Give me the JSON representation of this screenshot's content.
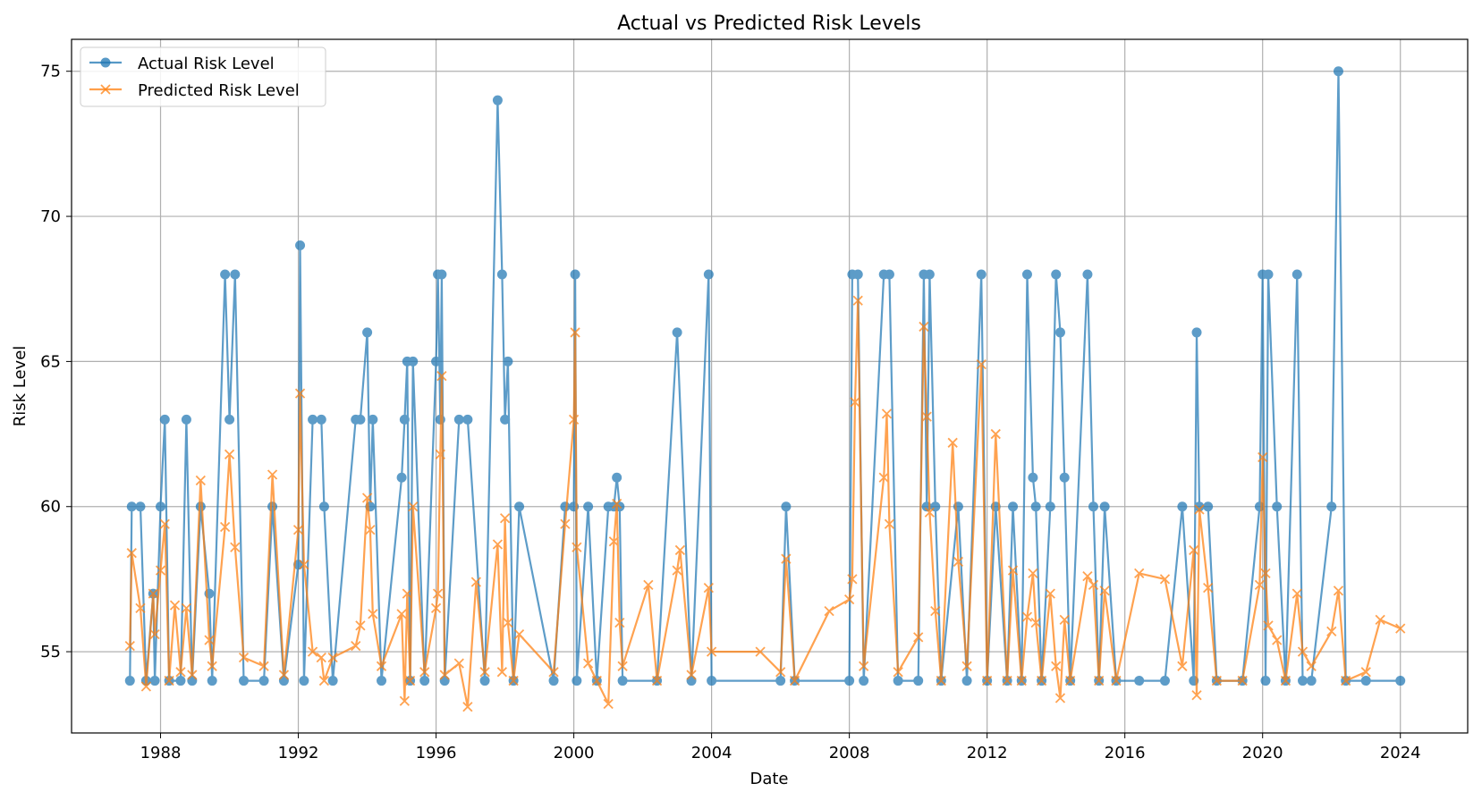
{
  "chart_data": {
    "type": "line",
    "title": "Actual vs Predicted Risk Levels",
    "xlabel": "Date",
    "ylabel": "Risk Level",
    "xlim": [
      "1985-06-01",
      "2025-12-15"
    ],
    "ylim": [
      52.2,
      76.1
    ],
    "x_ticks": [
      "1988",
      "1992",
      "1996",
      "2000",
      "2004",
      "2008",
      "2012",
      "2016",
      "2020",
      "2024"
    ],
    "y_ticks": [
      55,
      60,
      65,
      70,
      75
    ],
    "grid": true,
    "legend_position": "upper-left",
    "colors": {
      "actual": "#1f77b4",
      "predicted": "#ff7f0e"
    },
    "series": [
      {
        "name": "Actual Risk Level",
        "marker": "circle",
        "points": [
          [
            "1987-02-10",
            54
          ],
          [
            "1987-03-01",
            60
          ],
          [
            "1987-06-01",
            60
          ],
          [
            "1987-08-01",
            54
          ],
          [
            "1987-10-15",
            57
          ],
          [
            "1987-11-01",
            54
          ],
          [
            "1988-01-01",
            60
          ],
          [
            "1988-02-15",
            63
          ],
          [
            "1988-04-01",
            54
          ],
          [
            "1988-08-01",
            54
          ],
          [
            "1988-10-01",
            63
          ],
          [
            "1988-12-01",
            54
          ],
          [
            "1989-03-01",
            60
          ],
          [
            "1989-06-01",
            57
          ],
          [
            "1989-07-01",
            54
          ],
          [
            "1989-11-15",
            68
          ],
          [
            "1990-01-01",
            63
          ],
          [
            "1990-03-01",
            68
          ],
          [
            "1990-06-01",
            54
          ],
          [
            "1991-01-01",
            54
          ],
          [
            "1991-04-01",
            60
          ],
          [
            "1991-08-01",
            54
          ],
          [
            "1992-01-01",
            58
          ],
          [
            "1992-01-20",
            69
          ],
          [
            "1992-03-01",
            54
          ],
          [
            "1992-06-01",
            63
          ],
          [
            "1992-09-01",
            63
          ],
          [
            "1992-10-01",
            60
          ],
          [
            "1993-01-01",
            54
          ],
          [
            "1993-09-01",
            63
          ],
          [
            "1993-10-20",
            63
          ],
          [
            "1994-01-01",
            66
          ],
          [
            "1994-02-01",
            60
          ],
          [
            "1994-03-01",
            63
          ],
          [
            "1994-06-01",
            54
          ],
          [
            "1995-01-01",
            61
          ],
          [
            "1995-02-01",
            63
          ],
          [
            "1995-03-01",
            65
          ],
          [
            "1995-04-01",
            54
          ],
          [
            "1995-05-01",
            65
          ],
          [
            "1995-09-01",
            54
          ],
          [
            "1996-01-01",
            65
          ],
          [
            "1996-01-20",
            68
          ],
          [
            "1996-02-15",
            63
          ],
          [
            "1996-03-01",
            68
          ],
          [
            "1996-04-01",
            54
          ],
          [
            "1996-09-01",
            63
          ],
          [
            "1996-12-01",
            63
          ],
          [
            "1997-06-01",
            54
          ],
          [
            "1997-10-15",
            74
          ],
          [
            "1997-12-01",
            68
          ],
          [
            "1998-01-01",
            63
          ],
          [
            "1998-02-01",
            65
          ],
          [
            "1998-04-01",
            54
          ],
          [
            "1998-06-01",
            60
          ],
          [
            "1999-06-01",
            54
          ],
          [
            "1999-10-01",
            60
          ],
          [
            "2000-01-01",
            60
          ],
          [
            "2000-01-15",
            68
          ],
          [
            "2000-02-01",
            54
          ],
          [
            "2000-06-01",
            60
          ],
          [
            "2000-09-01",
            54
          ],
          [
            "2001-01-01",
            60
          ],
          [
            "2001-03-01",
            60
          ],
          [
            "2001-04-01",
            61
          ],
          [
            "2001-05-01",
            60
          ],
          [
            "2001-06-01",
            54
          ],
          [
            "2002-06-01",
            54
          ],
          [
            "2003-01-01",
            66
          ],
          [
            "2003-06-01",
            54
          ],
          [
            "2003-12-01",
            68
          ],
          [
            "2004-01-01",
            54
          ],
          [
            "2006-01-01",
            54
          ],
          [
            "2006-03-01",
            60
          ],
          [
            "2006-06-01",
            54
          ],
          [
            "2008-01-01",
            54
          ],
          [
            "2008-02-01",
            68
          ],
          [
            "2008-04-01",
            68
          ],
          [
            "2008-06-01",
            54
          ],
          [
            "2009-01-01",
            68
          ],
          [
            "2009-03-01",
            68
          ],
          [
            "2009-06-01",
            54
          ],
          [
            "2010-01-01",
            54
          ],
          [
            "2010-03-01",
            68
          ],
          [
            "2010-04-01",
            60
          ],
          [
            "2010-05-01",
            68
          ],
          [
            "2010-07-01",
            60
          ],
          [
            "2010-09-01",
            54
          ],
          [
            "2011-03-01",
            60
          ],
          [
            "2011-06-01",
            54
          ],
          [
            "2011-11-01",
            68
          ],
          [
            "2012-01-01",
            54
          ],
          [
            "2012-04-01",
            60
          ],
          [
            "2012-08-01",
            54
          ],
          [
            "2012-10-01",
            60
          ],
          [
            "2013-01-01",
            54
          ],
          [
            "2013-03-01",
            68
          ],
          [
            "2013-05-01",
            61
          ],
          [
            "2013-06-01",
            60
          ],
          [
            "2013-08-01",
            54
          ],
          [
            "2013-11-01",
            60
          ],
          [
            "2014-01-01",
            68
          ],
          [
            "2014-02-15",
            66
          ],
          [
            "2014-04-01",
            61
          ],
          [
            "2014-06-01",
            54
          ],
          [
            "2014-12-01",
            68
          ],
          [
            "2015-02-01",
            60
          ],
          [
            "2015-04-01",
            54
          ],
          [
            "2015-06-01",
            60
          ],
          [
            "2015-10-01",
            54
          ],
          [
            "2016-06-01",
            54
          ],
          [
            "2017-03-01",
            54
          ],
          [
            "2017-09-01",
            60
          ],
          [
            "2018-01-01",
            54
          ],
          [
            "2018-02-01",
            66
          ],
          [
            "2018-03-01",
            60
          ],
          [
            "2018-06-01",
            60
          ],
          [
            "2018-09-01",
            54
          ],
          [
            "2019-06-01",
            54
          ],
          [
            "2019-12-01",
            60
          ],
          [
            "2020-01-01",
            68
          ],
          [
            "2020-02-01",
            54
          ],
          [
            "2020-03-01",
            68
          ],
          [
            "2020-06-01",
            60
          ],
          [
            "2020-09-01",
            54
          ],
          [
            "2021-01-01",
            68
          ],
          [
            "2021-03-01",
            54
          ],
          [
            "2021-06-01",
            54
          ],
          [
            "2022-01-01",
            60
          ],
          [
            "2022-03-15",
            75
          ],
          [
            "2022-06-01",
            54
          ],
          [
            "2023-01-01",
            54
          ],
          [
            "2024-01-01",
            54
          ]
        ]
      },
      {
        "name": "Predicted Risk Level",
        "marker": "x",
        "points": [
          [
            "1987-02-10",
            55.2
          ],
          [
            "1987-03-01",
            58.4
          ],
          [
            "1987-06-01",
            56.5
          ],
          [
            "1987-08-01",
            53.8
          ],
          [
            "1987-10-15",
            57.0
          ],
          [
            "1987-11-01",
            55.6
          ],
          [
            "1988-01-01",
            57.8
          ],
          [
            "1988-02-15",
            59.4
          ],
          [
            "1988-04-01",
            54.0
          ],
          [
            "1988-06-01",
            56.6
          ],
          [
            "1988-08-01",
            54.3
          ],
          [
            "1988-10-01",
            56.5
          ],
          [
            "1988-12-01",
            54.2
          ],
          [
            "1989-03-01",
            60.9
          ],
          [
            "1989-06-01",
            55.4
          ],
          [
            "1989-07-01",
            54.5
          ],
          [
            "1989-11-15",
            59.3
          ],
          [
            "1990-01-01",
            61.8
          ],
          [
            "1990-03-01",
            58.6
          ],
          [
            "1990-06-01",
            54.8
          ],
          [
            "1991-01-01",
            54.5
          ],
          [
            "1991-04-01",
            61.1
          ],
          [
            "1991-08-01",
            54.2
          ],
          [
            "1992-01-01",
            59.2
          ],
          [
            "1992-01-20",
            63.9
          ],
          [
            "1992-03-01",
            58.0
          ],
          [
            "1992-06-01",
            55.0
          ],
          [
            "1992-09-01",
            54.8
          ],
          [
            "1992-10-01",
            54.0
          ],
          [
            "1993-01-01",
            54.8
          ],
          [
            "1993-09-01",
            55.2
          ],
          [
            "1993-10-20",
            55.9
          ],
          [
            "1994-01-01",
            60.3
          ],
          [
            "1994-02-01",
            59.2
          ],
          [
            "1994-03-01",
            56.3
          ],
          [
            "1994-06-01",
            54.5
          ],
          [
            "1995-01-01",
            56.3
          ],
          [
            "1995-02-01",
            53.3
          ],
          [
            "1995-03-01",
            57.0
          ],
          [
            "1995-04-01",
            54.0
          ],
          [
            "1995-05-01",
            60.0
          ],
          [
            "1995-09-01",
            54.3
          ],
          [
            "1996-01-01",
            56.5
          ],
          [
            "1996-01-20",
            57.0
          ],
          [
            "1996-02-15",
            61.8
          ],
          [
            "1996-03-01",
            64.5
          ],
          [
            "1996-04-01",
            54.2
          ],
          [
            "1996-09-01",
            54.6
          ],
          [
            "1996-12-01",
            53.1
          ],
          [
            "1997-03-01",
            57.4
          ],
          [
            "1997-06-01",
            54.3
          ],
          [
            "1997-10-15",
            58.7
          ],
          [
            "1997-12-01",
            54.3
          ],
          [
            "1998-01-01",
            59.6
          ],
          [
            "1998-02-01",
            56.0
          ],
          [
            "1998-04-01",
            54.0
          ],
          [
            "1998-06-01",
            55.6
          ],
          [
            "1999-06-01",
            54.3
          ],
          [
            "1999-10-01",
            59.4
          ],
          [
            "2000-01-01",
            63.0
          ],
          [
            "2000-01-15",
            66.0
          ],
          [
            "2000-02-01",
            58.6
          ],
          [
            "2000-06-01",
            54.6
          ],
          [
            "2000-09-01",
            54.0
          ],
          [
            "2001-01-01",
            53.2
          ],
          [
            "2001-03-01",
            58.8
          ],
          [
            "2001-04-01",
            60.1
          ],
          [
            "2001-05-01",
            56.0
          ],
          [
            "2001-06-01",
            54.5
          ],
          [
            "2002-03-01",
            57.3
          ],
          [
            "2002-06-01",
            54.0
          ],
          [
            "2003-01-01",
            57.8
          ],
          [
            "2003-02-01",
            58.5
          ],
          [
            "2003-06-01",
            54.2
          ],
          [
            "2003-12-01",
            57.2
          ],
          [
            "2004-01-01",
            55.0
          ],
          [
            "2005-06-01",
            55.0
          ],
          [
            "2006-01-01",
            54.3
          ],
          [
            "2006-03-01",
            58.2
          ],
          [
            "2006-06-01",
            54.0
          ],
          [
            "2007-06-01",
            56.4
          ],
          [
            "2008-01-01",
            56.8
          ],
          [
            "2008-02-01",
            57.5
          ],
          [
            "2008-03-01",
            63.6
          ],
          [
            "2008-04-01",
            67.1
          ],
          [
            "2008-06-01",
            54.5
          ],
          [
            "2009-01-01",
            61.0
          ],
          [
            "2009-02-01",
            63.2
          ],
          [
            "2009-03-01",
            59.4
          ],
          [
            "2009-06-01",
            54.3
          ],
          [
            "2010-01-01",
            55.5
          ],
          [
            "2010-03-01",
            66.2
          ],
          [
            "2010-04-01",
            63.1
          ],
          [
            "2010-05-01",
            59.8
          ],
          [
            "2010-07-01",
            56.4
          ],
          [
            "2010-09-01",
            54.0
          ],
          [
            "2011-01-01",
            62.2
          ],
          [
            "2011-03-01",
            58.1
          ],
          [
            "2011-06-01",
            54.5
          ],
          [
            "2011-11-01",
            64.9
          ],
          [
            "2012-01-01",
            54.0
          ],
          [
            "2012-04-01",
            62.5
          ],
          [
            "2012-08-01",
            54.0
          ],
          [
            "2012-10-01",
            57.8
          ],
          [
            "2013-01-01",
            54.0
          ],
          [
            "2013-03-01",
            56.2
          ],
          [
            "2013-05-01",
            57.7
          ],
          [
            "2013-06-01",
            56.0
          ],
          [
            "2013-08-01",
            54.0
          ],
          [
            "2013-11-01",
            57.0
          ],
          [
            "2014-01-01",
            54.5
          ],
          [
            "2014-02-15",
            53.4
          ],
          [
            "2014-04-01",
            56.1
          ],
          [
            "2014-06-01",
            54.0
          ],
          [
            "2014-12-01",
            57.6
          ],
          [
            "2015-02-01",
            57.3
          ],
          [
            "2015-04-01",
            54.0
          ],
          [
            "2015-06-01",
            57.1
          ],
          [
            "2015-10-01",
            54.0
          ],
          [
            "2016-06-01",
            57.7
          ],
          [
            "2017-03-01",
            57.5
          ],
          [
            "2017-09-01",
            54.5
          ],
          [
            "2018-01-01",
            58.5
          ],
          [
            "2018-02-01",
            53.5
          ],
          [
            "2018-03-01",
            59.9
          ],
          [
            "2018-06-01",
            57.2
          ],
          [
            "2018-09-01",
            54.0
          ],
          [
            "2019-06-01",
            54.0
          ],
          [
            "2019-12-01",
            57.3
          ],
          [
            "2020-01-01",
            61.7
          ],
          [
            "2020-02-01",
            57.7
          ],
          [
            "2020-03-01",
            55.9
          ],
          [
            "2020-06-01",
            55.4
          ],
          [
            "2020-09-01",
            54.0
          ],
          [
            "2021-01-01",
            57.0
          ],
          [
            "2021-03-01",
            55.0
          ],
          [
            "2021-06-01",
            54.5
          ],
          [
            "2022-01-01",
            55.7
          ],
          [
            "2022-03-15",
            57.1
          ],
          [
            "2022-06-01",
            54.0
          ],
          [
            "2023-01-01",
            54.3
          ],
          [
            "2023-06-01",
            56.1
          ],
          [
            "2024-01-01",
            55.8
          ]
        ]
      }
    ]
  }
}
